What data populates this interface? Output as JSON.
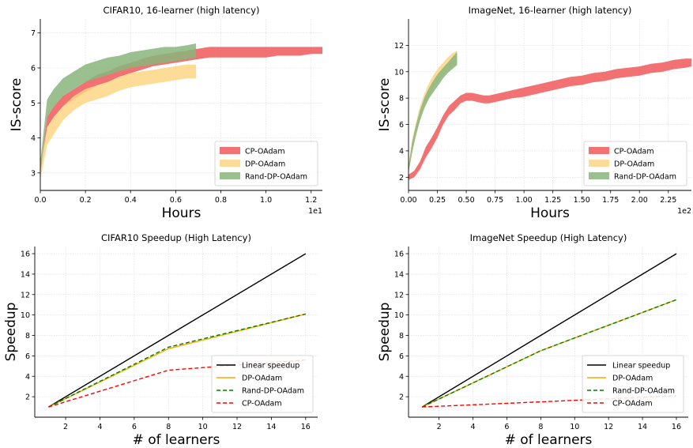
{
  "chart_data": [
    {
      "type": "area",
      "title": "CIFAR10, 16-learner (high latency)",
      "xlabel": "Hours",
      "ylabel": "IS-score",
      "x_offset_label": "1e1",
      "xlim": [
        0.0,
        1.25
      ],
      "ylim": [
        2.5,
        7.4
      ],
      "x_ticks": [
        "0.0",
        "0.2",
        "0.4",
        "0.6",
        "0.8",
        "1.0",
        "1.2"
      ],
      "y_ticks": [
        "3",
        "4",
        "5",
        "6",
        "7"
      ],
      "grid": true,
      "legend_position": "lower-right",
      "series": [
        {
          "name": "CP-OAdam",
          "color": "#f0595a",
          "x": [
            0.0,
            0.03,
            0.06,
            0.1,
            0.15,
            0.2,
            0.25,
            0.3,
            0.35,
            0.4,
            0.45,
            0.5,
            0.55,
            0.6,
            0.65,
            0.7,
            0.75,
            0.8,
            0.85,
            0.9,
            0.95,
            1.0,
            1.05,
            1.1,
            1.15,
            1.2,
            1.25
          ],
          "lower": [
            2.9,
            4.3,
            4.6,
            4.9,
            5.1,
            5.3,
            5.5,
            5.6,
            5.75,
            5.85,
            5.95,
            6.05,
            6.1,
            6.15,
            6.2,
            6.25,
            6.3,
            6.3,
            6.3,
            6.3,
            6.3,
            6.3,
            6.35,
            6.35,
            6.35,
            6.4,
            6.4
          ],
          "upper": [
            3.1,
            4.6,
            4.9,
            5.2,
            5.4,
            5.6,
            5.8,
            5.9,
            6.05,
            6.15,
            6.25,
            6.35,
            6.4,
            6.45,
            6.5,
            6.55,
            6.6,
            6.6,
            6.6,
            6.6,
            6.6,
            6.6,
            6.6,
            6.6,
            6.6,
            6.6,
            6.6
          ]
        },
        {
          "name": "DP-OAdam",
          "color": "#fdd685",
          "x": [
            0.0,
            0.03,
            0.06,
            0.1,
            0.15,
            0.2,
            0.25,
            0.3,
            0.35,
            0.4,
            0.45,
            0.5,
            0.55,
            0.6,
            0.65,
            0.69
          ],
          "lower": [
            2.8,
            3.8,
            4.1,
            4.5,
            4.8,
            5.0,
            5.1,
            5.2,
            5.35,
            5.45,
            5.5,
            5.55,
            5.6,
            5.65,
            5.7,
            5.7
          ],
          "upper": [
            3.2,
            4.3,
            4.6,
            4.9,
            5.2,
            5.4,
            5.5,
            5.6,
            5.75,
            5.85,
            5.9,
            5.95,
            6.0,
            6.05,
            6.1,
            6.1
          ]
        },
        {
          "name": "Rand-DP-OAdam",
          "color": "#88b57c",
          "x": [
            0.0,
            0.03,
            0.06,
            0.1,
            0.15,
            0.2,
            0.25,
            0.3,
            0.35,
            0.4,
            0.45,
            0.5,
            0.55,
            0.6,
            0.65,
            0.69
          ],
          "lower": [
            3.0,
            4.6,
            4.9,
            5.2,
            5.4,
            5.6,
            5.7,
            5.8,
            5.9,
            6.0,
            6.05,
            6.1,
            6.15,
            6.2,
            6.25,
            6.3
          ],
          "upper": [
            3.3,
            5.1,
            5.4,
            5.7,
            5.9,
            6.1,
            6.2,
            6.3,
            6.35,
            6.45,
            6.5,
            6.55,
            6.6,
            6.6,
            6.65,
            6.7
          ]
        }
      ]
    },
    {
      "type": "area",
      "title": "ImageNet, 16-learner (high latency)",
      "xlabel": "Hours",
      "ylabel": "IS-score",
      "x_offset_label": "1e2",
      "xlim": [
        0.0,
        2.45
      ],
      "ylim": [
        1.0,
        14.0
      ],
      "x_ticks": [
        "0.00",
        "0.25",
        "0.50",
        "0.75",
        "1.00",
        "1.25",
        "1.50",
        "1.75",
        "2.00",
        "2.25"
      ],
      "y_ticks": [
        "2",
        "4",
        "6",
        "8",
        "10",
        "12"
      ],
      "grid": true,
      "legend_position": "lower-right",
      "series": [
        {
          "name": "CP-OAdam",
          "color": "#f0595a",
          "x": [
            0.0,
            0.05,
            0.1,
            0.15,
            0.2,
            0.25,
            0.3,
            0.35,
            0.4,
            0.45,
            0.5,
            0.55,
            0.6,
            0.65,
            0.7,
            0.8,
            0.9,
            1.0,
            1.1,
            1.2,
            1.3,
            1.4,
            1.5,
            1.6,
            1.7,
            1.8,
            1.9,
            2.0,
            2.1,
            2.2,
            2.3,
            2.4,
            2.45
          ],
          "lower": [
            1.8,
            2.0,
            2.6,
            3.5,
            4.2,
            5.0,
            6.0,
            6.7,
            7.1,
            7.6,
            7.8,
            7.8,
            7.7,
            7.6,
            7.6,
            7.8,
            8.0,
            8.1,
            8.3,
            8.5,
            8.7,
            8.9,
            9.0,
            9.2,
            9.3,
            9.5,
            9.6,
            9.7,
            9.9,
            10.0,
            10.2,
            10.3,
            10.4
          ],
          "upper": [
            2.2,
            2.5,
            3.2,
            4.3,
            5.0,
            5.8,
            6.7,
            7.4,
            7.8,
            8.2,
            8.4,
            8.4,
            8.3,
            8.2,
            8.2,
            8.4,
            8.6,
            8.8,
            9.0,
            9.2,
            9.4,
            9.6,
            9.7,
            9.9,
            10.0,
            10.2,
            10.3,
            10.4,
            10.6,
            10.7,
            10.9,
            11.0,
            11.0
          ]
        },
        {
          "name": "DP-OAdam",
          "color": "#fdd685",
          "x": [
            0.0,
            0.03,
            0.06,
            0.1,
            0.14,
            0.18,
            0.22,
            0.26,
            0.3,
            0.34,
            0.38,
            0.42
          ],
          "lower": [
            2.5,
            4.0,
            5.2,
            6.5,
            7.5,
            8.2,
            8.8,
            9.3,
            9.7,
            10.1,
            10.4,
            10.6
          ],
          "upper": [
            3.0,
            4.8,
            6.0,
            7.4,
            8.4,
            9.2,
            9.8,
            10.3,
            10.7,
            11.1,
            11.4,
            11.6
          ]
        },
        {
          "name": "Rand-DP-OAdam",
          "color": "#88b57c",
          "x": [
            0.0,
            0.03,
            0.06,
            0.1,
            0.14,
            0.18,
            0.22,
            0.26,
            0.3,
            0.34,
            0.38,
            0.42
          ],
          "lower": [
            2.3,
            3.8,
            5.0,
            6.3,
            7.3,
            8.0,
            8.5,
            9.0,
            9.5,
            9.9,
            10.2,
            10.5
          ],
          "upper": [
            2.8,
            4.6,
            5.8,
            7.1,
            8.1,
            8.8,
            9.4,
            9.9,
            10.3,
            10.7,
            11.1,
            11.5
          ]
        }
      ]
    },
    {
      "type": "line",
      "title": "CIFAR10 Speedup (High Latency)",
      "xlabel": "# of learners",
      "ylabel": "Speedup",
      "xlim": [
        0.2,
        16.7
      ],
      "ylim": [
        0.0,
        16.7
      ],
      "x_ticks": [
        "2",
        "4",
        "6",
        "8",
        "10",
        "12",
        "14",
        "16"
      ],
      "y_ticks": [
        "2",
        "4",
        "6",
        "8",
        "10",
        "12",
        "14",
        "16"
      ],
      "grid": true,
      "legend_position": "lower-right",
      "x": [
        1,
        8,
        16
      ],
      "series": [
        {
          "name": "Linear speedup",
          "color": "#000000",
          "dash": "solid",
          "values": [
            1,
            8,
            16
          ]
        },
        {
          "name": "DP-OAdam",
          "color": "#ffa500",
          "dash": "solid",
          "values": [
            1,
            6.7,
            10.1
          ]
        },
        {
          "name": "Rand-DP-OAdam",
          "color": "#008000",
          "dash": "dashed",
          "values": [
            1,
            6.85,
            10.1
          ]
        },
        {
          "name": "CP-OAdam",
          "color": "#ff0000",
          "dash": "dashed",
          "values": [
            1,
            4.6,
            5.6
          ]
        }
      ]
    },
    {
      "type": "line",
      "title": "ImageNet Speedup (High Latency)",
      "xlabel": "# of learners",
      "ylabel": "Speedup",
      "xlim": [
        0.2,
        16.7
      ],
      "ylim": [
        0.0,
        16.7
      ],
      "x_ticks": [
        "2",
        "4",
        "6",
        "8",
        "10",
        "12",
        "14",
        "16"
      ],
      "y_ticks": [
        "2",
        "4",
        "6",
        "8",
        "10",
        "12",
        "14",
        "16"
      ],
      "grid": true,
      "legend_position": "lower-right",
      "x": [
        1,
        8,
        16
      ],
      "series": [
        {
          "name": "Linear speedup",
          "color": "#000000",
          "dash": "solid",
          "values": [
            1,
            8,
            16
          ]
        },
        {
          "name": "DP-OAdam",
          "color": "#ffa500",
          "dash": "solid",
          "values": [
            1,
            6.5,
            11.5
          ]
        },
        {
          "name": "Rand-DP-OAdam",
          "color": "#008000",
          "dash": "dashed",
          "values": [
            1,
            6.5,
            11.5
          ]
        },
        {
          "name": "CP-OAdam",
          "color": "#ff0000",
          "dash": "dashed",
          "values": [
            1,
            1.5,
            2.1
          ]
        }
      ]
    }
  ]
}
